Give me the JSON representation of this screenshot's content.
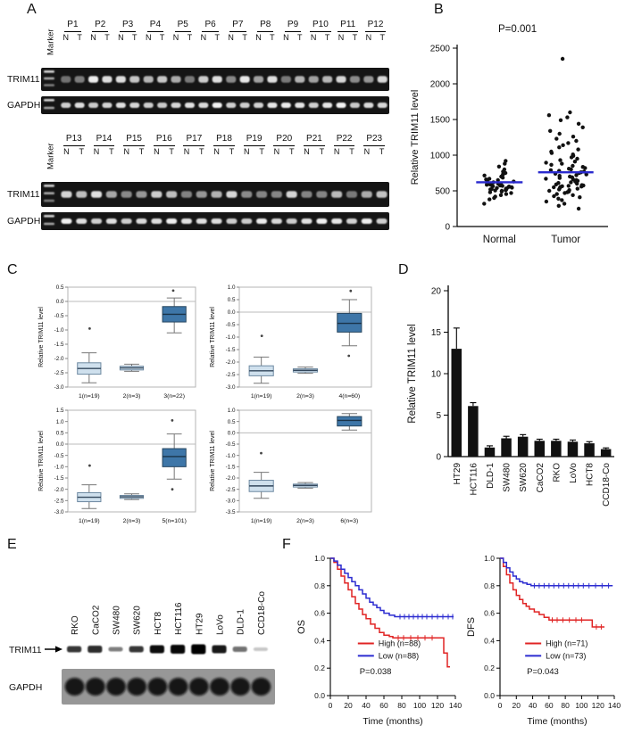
{
  "figure": {
    "panels": {
      "a": {
        "letter": "A",
        "marker_label": "Marker",
        "row_labels": [
          "TRIM11",
          "GAPDH"
        ],
        "lane_labels": [
          "N",
          "T"
        ],
        "top_patients": [
          "P1",
          "P2",
          "P3",
          "P4",
          "P5",
          "P6",
          "P7",
          "P8",
          "P9",
          "P10",
          "P11",
          "P12"
        ],
        "bottom_patients": [
          "P13",
          "P14",
          "P15",
          "P16",
          "P17",
          "P18",
          "P19",
          "P20",
          "P21",
          "P22",
          "P23"
        ]
      },
      "b": {
        "letter": "B"
      },
      "c": {
        "letter": "C"
      },
      "d": {
        "letter": "D"
      },
      "e": {
        "letter": "E",
        "cell_lines": [
          "RKO",
          "CaCO2",
          "SW480",
          "SW620",
          "HCT8",
          "HCT116",
          "HT29",
          "LoVo",
          "DLD-1",
          "CCD18-Co"
        ],
        "protein_labels": [
          "TRIM11",
          "GAPDH"
        ],
        "trim11_band_intensity": [
          0.78,
          0.82,
          0.5,
          0.78,
          0.95,
          0.97,
          1.0,
          0.9,
          0.55,
          0.22
        ]
      },
      "f": {
        "letter": "F"
      }
    }
  },
  "chart_data": [
    {
      "id": "B",
      "type": "scatter",
      "ylabel": "Relative TRIM11 level",
      "p_value": "P=0.001",
      "ylim": [
        0,
        2500
      ],
      "yticks": [
        0,
        500,
        1000,
        1500,
        2000,
        2500
      ],
      "mean_color": "#2a2ace",
      "point_color": "#111111",
      "groups": [
        {
          "name": "Normal",
          "mean": 620,
          "values": [
            320,
            380,
            400,
            420,
            440,
            455,
            470,
            480,
            490,
            500,
            505,
            510,
            515,
            520,
            525,
            530,
            535,
            540,
            545,
            550,
            555,
            560,
            565,
            570,
            575,
            580,
            585,
            590,
            595,
            600,
            610,
            620,
            630,
            640,
            650,
            660,
            670,
            685,
            700,
            715,
            730,
            750,
            770,
            800,
            840,
            880,
            920
          ]
        },
        {
          "name": "Tumor",
          "mean": 760,
          "values": [
            250,
            290,
            320,
            350,
            370,
            390,
            410,
            425,
            440,
            455,
            470,
            480,
            490,
            500,
            510,
            520,
            530,
            540,
            550,
            555,
            560,
            565,
            570,
            575,
            580,
            590,
            600,
            610,
            620,
            630,
            640,
            650,
            660,
            670,
            680,
            690,
            700,
            710,
            720,
            730,
            740,
            750,
            760,
            770,
            780,
            790,
            800,
            810,
            820,
            835,
            850,
            865,
            880,
            895,
            910,
            930,
            950,
            970,
            990,
            1010,
            1030,
            1050,
            1080,
            1110,
            1140,
            1170,
            1200,
            1230,
            1260,
            1300,
            1340,
            1390,
            1440,
            1490,
            1530,
            1560,
            1600,
            2350
          ]
        }
      ]
    },
    {
      "id": "C1",
      "type": "box",
      "ylabel": "Relative TRIM11 level",
      "ylim": [
        -3.0,
        0.5
      ],
      "yticks": [
        "0.5",
        "0.0",
        "-0.5",
        "-1.0",
        "-1.5",
        "-2.0",
        "-2.5",
        "-3.0"
      ],
      "gridline_at": 0,
      "categories": [
        "1(n=19)",
        "2(n=3)",
        "3(n=22)"
      ],
      "box_colors": [
        "#cfe0ed",
        "#cfe0ed",
        "#3e76a8"
      ],
      "boxes": [
        {
          "low": -2.85,
          "q1": -2.55,
          "median": -2.35,
          "q3": -2.15,
          "high": -1.8,
          "outliers": [
            -0.95
          ]
        },
        {
          "low": -2.45,
          "q1": -2.4,
          "median": -2.33,
          "q3": -2.27,
          "high": -2.2,
          "outliers": []
        },
        {
          "low": -1.1,
          "q1": -0.72,
          "median": -0.45,
          "q3": -0.18,
          "high": 0.12,
          "outliers": [
            0.38
          ]
        }
      ]
    },
    {
      "id": "C2",
      "type": "box",
      "ylabel": "Relative TRIM11 level",
      "ylim": [
        -3.0,
        1.0
      ],
      "yticks": [
        "1.0",
        "0.5",
        "0.0",
        "-0.5",
        "-1.0",
        "-1.5",
        "-2.0",
        "-2.5",
        "-3.0"
      ],
      "gridline_at": 0,
      "categories": [
        "1(n=19)",
        "2(n=3)",
        "4(n=60)"
      ],
      "box_colors": [
        "#cfe0ed",
        "#cfe0ed",
        "#3e76a8"
      ],
      "boxes": [
        {
          "low": -2.85,
          "q1": -2.55,
          "median": -2.35,
          "q3": -2.15,
          "high": -1.8,
          "outliers": [
            -0.95
          ]
        },
        {
          "low": -2.45,
          "q1": -2.4,
          "median": -2.33,
          "q3": -2.27,
          "high": -2.2,
          "outliers": []
        },
        {
          "low": -1.35,
          "q1": -0.8,
          "median": -0.45,
          "q3": -0.05,
          "high": 0.5,
          "outliers": [
            0.85,
            -1.75
          ]
        }
      ]
    },
    {
      "id": "C3",
      "type": "box",
      "ylabel": "Relative TRIM11 level",
      "ylim": [
        -3.0,
        1.5
      ],
      "yticks": [
        "1.5",
        "1.0",
        "0.5",
        "0.0",
        "-0.5",
        "-1.0",
        "-1.5",
        "-2.0",
        "-2.5",
        "-3.0"
      ],
      "gridline_at": 0,
      "categories": [
        "1(n=19)",
        "2(n=3)",
        "5(n=101)"
      ],
      "box_colors": [
        "#cfe0ed",
        "#cfe0ed",
        "#3e76a8"
      ],
      "boxes": [
        {
          "low": -2.85,
          "q1": -2.55,
          "median": -2.35,
          "q3": -2.15,
          "high": -1.8,
          "outliers": [
            -0.95
          ]
        },
        {
          "low": -2.45,
          "q1": -2.4,
          "median": -2.33,
          "q3": -2.27,
          "high": -2.2,
          "outliers": []
        },
        {
          "low": -1.55,
          "q1": -1.0,
          "median": -0.55,
          "q3": -0.2,
          "high": 0.45,
          "outliers": [
            1.05,
            -2.0
          ]
        }
      ]
    },
    {
      "id": "C4",
      "type": "box",
      "ylabel": "Relative TRIM11 level",
      "ylim": [
        -3.5,
        1.0
      ],
      "yticks": [
        "1.0",
        "0.5",
        "0.0",
        "-0.5",
        "-1.0",
        "-1.5",
        "-2.0",
        "-2.5",
        "-3.0",
        "-3.5"
      ],
      "gridline_at": 0,
      "categories": [
        "1(n=19)",
        "2(n=3)",
        "6(n=3)"
      ],
      "box_colors": [
        "#cfe0ed",
        "#cfe0ed",
        "#3e76a8"
      ],
      "boxes": [
        {
          "low": -2.9,
          "q1": -2.6,
          "median": -2.35,
          "q3": -2.1,
          "high": -1.75,
          "outliers": [
            -0.9
          ]
        },
        {
          "low": -2.45,
          "q1": -2.4,
          "median": -2.33,
          "q3": -2.27,
          "high": -2.2,
          "outliers": []
        },
        {
          "low": 0.12,
          "q1": 0.3,
          "median": 0.55,
          "q3": 0.72,
          "high": 0.85,
          "outliers": []
        }
      ]
    },
    {
      "id": "D",
      "type": "bar",
      "ylabel": "Relative TRIM11 level",
      "ylim": [
        0,
        20
      ],
      "yticks": [
        0,
        5,
        10,
        15,
        20
      ],
      "bar_color": "#111111",
      "categories": [
        "HT29",
        "HCT116",
        "DLD-1",
        "SW480",
        "SW620",
        "CaCO2",
        "RKO",
        "LoVo",
        "HCT8",
        "CCD18-Co"
      ],
      "values": [
        13,
        6.1,
        1.1,
        2.2,
        2.4,
        1.9,
        1.9,
        1.8,
        1.6,
        0.9
      ],
      "errors": [
        2.5,
        0.4,
        0.2,
        0.25,
        0.25,
        0.2,
        0.2,
        0.2,
        0.2,
        0.15
      ]
    },
    {
      "id": "F1",
      "type": "km",
      "ylabel": "OS",
      "xlabel": "Time (months)",
      "xlim": [
        0,
        140
      ],
      "ylim": [
        0,
        1
      ],
      "xticks": [
        0,
        20,
        40,
        60,
        80,
        100,
        120,
        140
      ],
      "yticks": [
        "0.0",
        "0.2",
        "0.4",
        "0.6",
        "0.8",
        "1.0"
      ],
      "p_value": "P=0.038",
      "series": [
        {
          "name": "High (n=88)",
          "color": "#e02424",
          "end": 134,
          "points": [
            [
              0,
              1.0
            ],
            [
              4,
              0.97
            ],
            [
              8,
              0.92
            ],
            [
              12,
              0.87
            ],
            [
              16,
              0.82
            ],
            [
              20,
              0.77
            ],
            [
              24,
              0.72
            ],
            [
              28,
              0.67
            ],
            [
              32,
              0.63
            ],
            [
              36,
              0.59
            ],
            [
              40,
              0.56
            ],
            [
              45,
              0.52
            ],
            [
              50,
              0.49
            ],
            [
              55,
              0.46
            ],
            [
              60,
              0.44
            ],
            [
              66,
              0.43
            ],
            [
              70,
              0.42
            ],
            [
              122,
              0.42
            ],
            [
              127,
              0.31
            ],
            [
              131,
              0.21
            ]
          ],
          "censors": [
            76,
            82,
            90,
            98,
            106,
            114
          ]
        },
        {
          "name": "Low (n=88)",
          "color": "#2c2cd0",
          "end": 138,
          "points": [
            [
              0,
              1.0
            ],
            [
              4,
              0.98
            ],
            [
              8,
              0.95
            ],
            [
              12,
              0.92
            ],
            [
              16,
              0.89
            ],
            [
              20,
              0.86
            ],
            [
              24,
              0.83
            ],
            [
              28,
              0.8
            ],
            [
              32,
              0.77
            ],
            [
              36,
              0.74
            ],
            [
              40,
              0.71
            ],
            [
              44,
              0.68
            ],
            [
              48,
              0.66
            ],
            [
              52,
              0.64
            ],
            [
              56,
              0.62
            ],
            [
              60,
              0.6
            ],
            [
              66,
              0.585
            ],
            [
              72,
              0.575
            ]
          ],
          "censors": [
            78,
            83,
            88,
            93,
            98,
            103,
            108,
            114,
            120,
            126,
            132,
            137
          ]
        }
      ]
    },
    {
      "id": "F2",
      "type": "km",
      "ylabel": "DFS",
      "xlabel": "Time (months)",
      "xlim": [
        0,
        140
      ],
      "ylim": [
        0,
        1
      ],
      "xticks": [
        0,
        20,
        40,
        60,
        80,
        100,
        120,
        140
      ],
      "yticks": [
        "0.0",
        "0.2",
        "0.4",
        "0.6",
        "0.8",
        "1.0"
      ],
      "p_value": "P=0.043",
      "series": [
        {
          "name": "High (n=71)",
          "color": "#e02424",
          "end": 128,
          "points": [
            [
              0,
              1.0
            ],
            [
              4,
              0.94
            ],
            [
              8,
              0.88
            ],
            [
              12,
              0.82
            ],
            [
              16,
              0.77
            ],
            [
              20,
              0.73
            ],
            [
              24,
              0.7
            ],
            [
              28,
              0.67
            ],
            [
              32,
              0.65
            ],
            [
              36,
              0.63
            ],
            [
              42,
              0.61
            ],
            [
              48,
              0.59
            ],
            [
              54,
              0.57
            ],
            [
              60,
              0.55
            ],
            [
              108,
              0.55
            ],
            [
              113,
              0.5
            ]
          ],
          "censors": [
            64,
            70,
            77,
            85,
            93,
            100,
            118,
            124
          ]
        },
        {
          "name": "Low (n=73)",
          "color": "#2c2cd0",
          "end": 138,
          "points": [
            [
              0,
              1.0
            ],
            [
              4,
              0.97
            ],
            [
              8,
              0.93
            ],
            [
              12,
              0.9
            ],
            [
              16,
              0.87
            ],
            [
              20,
              0.85
            ],
            [
              24,
              0.83
            ],
            [
              28,
              0.82
            ],
            [
              33,
              0.81
            ],
            [
              38,
              0.8
            ]
          ],
          "censors": [
            42,
            48,
            54,
            60,
            66,
            72,
            78,
            84,
            90,
            96,
            102,
            109,
            117,
            125,
            133
          ]
        }
      ]
    }
  ]
}
